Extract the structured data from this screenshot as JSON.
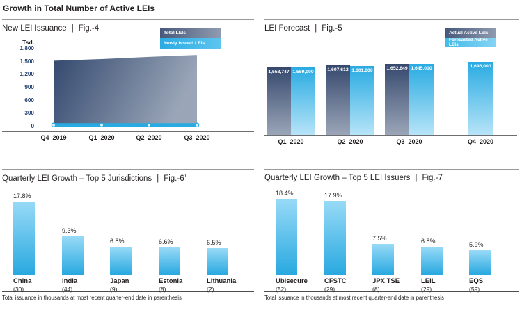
{
  "page": {
    "title": "Growth in Total Number of Active LEIs"
  },
  "colors": {
    "cyan": "#29abe2",
    "cyan_light": "#b7e4f8",
    "navy": "#36496e",
    "navy_light": "#9aa5b7",
    "tick_text": "#21406f",
    "text": "#231f20"
  },
  "chart_data": [
    {
      "id": "fig4",
      "type": "area",
      "title": "New LEI Issuance",
      "fig": "Fig.-4",
      "ylabel": "Tsd.",
      "ylim": [
        0,
        1800
      ],
      "yticks": [
        1800,
        1500,
        1200,
        900,
        600,
        300,
        0
      ],
      "ytick_labels": [
        "1,800",
        "1,500",
        "1,200",
        "900",
        "600",
        "300",
        "0"
      ],
      "categories": [
        "Q4–2019",
        "Q1–2020",
        "Q2–2020",
        "Q3–2020"
      ],
      "series": [
        {
          "name": "Total LEIs",
          "type": "area",
          "style": "navy-gradient",
          "values": [
            1520,
            1559,
            1608,
            1653
          ]
        },
        {
          "name": "Newly Issued LEIs",
          "type": "line",
          "style": "cyan",
          "values": [
            35,
            35,
            35,
            35
          ]
        }
      ],
      "legend_position": "top-right",
      "grid": false
    },
    {
      "id": "fig5",
      "type": "bar",
      "title": "LEI Forecast",
      "fig": "Fig.-5",
      "categories": [
        "Q1–2020",
        "Q2–2020",
        "Q3–2020",
        "Q4–2020"
      ],
      "series": [
        {
          "name": "Actual Active LEIs",
          "style": "navy",
          "values": [
            1558747,
            1607612,
            1652649,
            null
          ],
          "labels": [
            "1,558,747",
            "1,607,612",
            "1,652,649",
            null
          ]
        },
        {
          "name": "Forecasted Active LEIs",
          "style": "cyan",
          "values": [
            1559000,
            1601000,
            1645000,
            1696000
          ],
          "labels": [
            "1,559,000",
            "1,601,000",
            "1,645,000",
            "1,696,000"
          ]
        }
      ],
      "legend_position": "top-right",
      "grid": false
    },
    {
      "id": "fig6",
      "type": "bar",
      "title": "Quarterly LEI Growth – Top 5 Jurisdictions",
      "fig": "Fig.-6",
      "fig_sup": "1",
      "categories": [
        "China",
        "India",
        "Japan",
        "Estonia",
        "Lithuania"
      ],
      "sub_categories": [
        "(30)",
        "(44)",
        "(9)",
        "(8)",
        "(2)"
      ],
      "values": [
        17.8,
        9.3,
        6.8,
        6.6,
        6.5
      ],
      "value_labels": [
        "17.8%",
        "9.3%",
        "6.8%",
        "6.6%",
        "6.5%"
      ],
      "unit": "%",
      "footnote": "Total issuance in thousands at most recent quarter-end date in parenthesis"
    },
    {
      "id": "fig7",
      "type": "bar",
      "title": "Quarterly LEI Growth – Top 5 LEI Issuers",
      "fig": "Fig.-7",
      "categories": [
        "Ubisecure",
        "CFSTC",
        "JPX TSE",
        "LEIL",
        "EQS"
      ],
      "sub_categories": [
        "(52)",
        "(29)",
        "(8)",
        "(29)",
        "(59)"
      ],
      "values": [
        18.4,
        17.9,
        7.5,
        6.8,
        5.9
      ],
      "value_labels": [
        "18.4%",
        "17.9%",
        "7.5%",
        "6.8%",
        "5.9%"
      ],
      "unit": "%",
      "footnote": "Total issuance in thousands at most recent quarter-end date in parenthesis"
    }
  ]
}
